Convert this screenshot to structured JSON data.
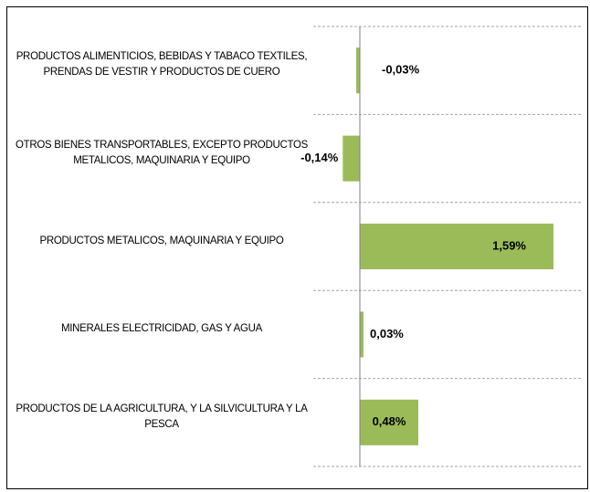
{
  "chart_data": {
    "type": "bar",
    "orientation": "horizontal",
    "categories": [
      "PRODUCTOS ALIMENTICIOS, BEBIDAS Y TABACO TEXTILES, PRENDAS DE VESTIR Y PRODUCTOS DE CUERO",
      "OTROS BIENES TRANSPORTABLES, EXCEPTO PRODUCTOS METALICOS, MAQUINARIA Y EQUIPO",
      "PRODUCTOS METALICOS, MAQUINARIA Y EQUIPO",
      "MINERALES ELECTRICIDAD, GAS Y AGUA",
      "PRODUCTOS DE LA AGRICULTURA, Y LA SILVICULTURA Y LA PESCA"
    ],
    "values": [
      -0.03,
      -0.14,
      1.59,
      0.03,
      0.48
    ],
    "value_labels": [
      "-0,03%",
      "-0,14%",
      "1,59%",
      "0,03%",
      "0,48%"
    ],
    "color": "#9bbb59"
  }
}
